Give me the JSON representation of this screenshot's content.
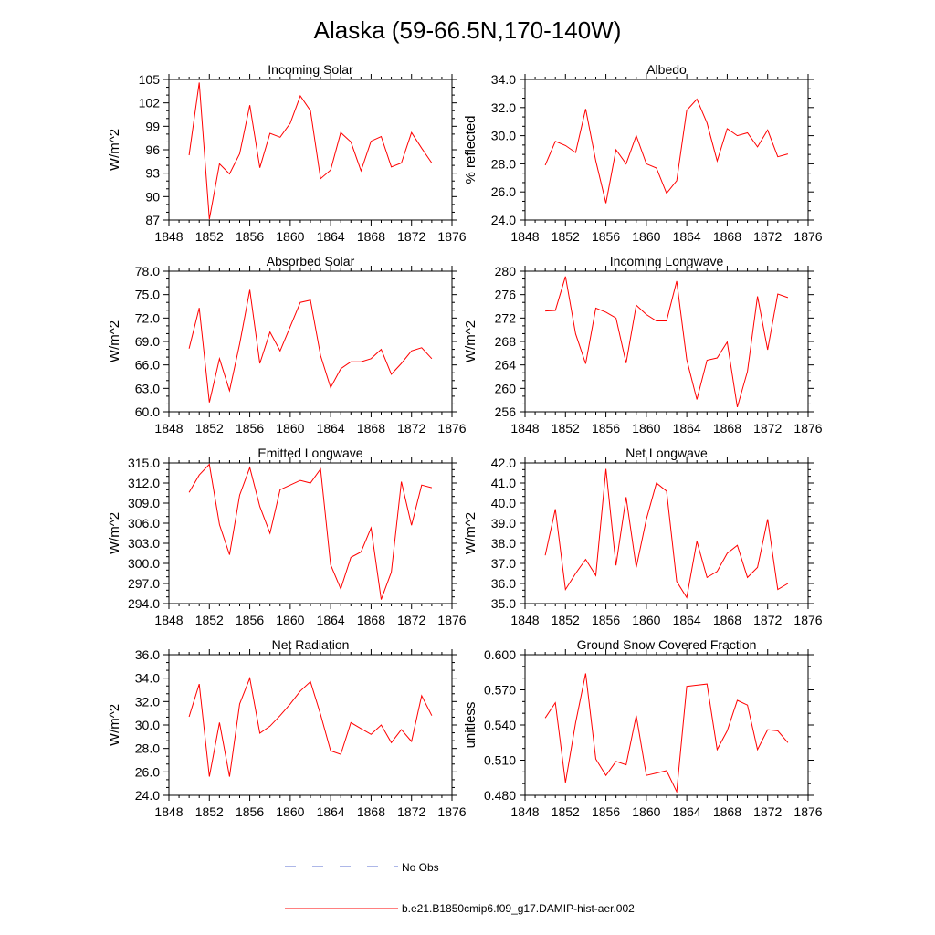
{
  "title": "Alaska (59-66.5N,170-140W)",
  "colors": {
    "model_line": "#ff0000",
    "obs_line": "#5b6fd1",
    "axis": "#000000"
  },
  "legend": {
    "obs_label": "No Obs",
    "model_label": "b.e21.B1850cmip6.f09_g17.DAMIP-hist-aer.002"
  },
  "chart_data": [
    {
      "type": "line",
      "title": "Incoming Solar",
      "ylabel": "W/m^2",
      "xlim": [
        1848,
        1876
      ],
      "ylim": [
        87,
        105
      ],
      "xticks": [
        1848,
        1852,
        1856,
        1860,
        1864,
        1868,
        1872,
        1876
      ],
      "yticks": [
        87,
        90,
        93,
        96,
        99,
        102,
        105
      ],
      "ytick_labels": [
        "87",
        "90",
        "93",
        "96",
        "99",
        "102",
        "105"
      ],
      "x": [
        1850,
        1851,
        1852,
        1853,
        1854,
        1855,
        1856,
        1857,
        1858,
        1859,
        1860,
        1861,
        1862,
        1863,
        1864,
        1865,
        1866,
        1867,
        1868,
        1869,
        1870,
        1871,
        1872,
        1873,
        1874
      ],
      "values": [
        95.3,
        104.6,
        87.1,
        94.2,
        92.9,
        95.5,
        101.7,
        93.7,
        98.1,
        97.6,
        99.4,
        102.9,
        101.0,
        92.3,
        93.4,
        98.2,
        97.0,
        93.3,
        97.1,
        97.7,
        93.8,
        94.3,
        98.2,
        96.2,
        94.3
      ]
    },
    {
      "type": "line",
      "title": "Albedo",
      "ylabel": "% reflected",
      "xlim": [
        1848,
        1876
      ],
      "ylim": [
        24,
        34
      ],
      "xticks": [
        1848,
        1852,
        1856,
        1860,
        1864,
        1868,
        1872,
        1876
      ],
      "yticks": [
        24,
        26,
        28,
        30,
        32,
        34
      ],
      "ytick_labels": [
        "24.0",
        "26.0",
        "28.0",
        "30.0",
        "32.0",
        "34.0"
      ],
      "x": [
        1850,
        1851,
        1852,
        1853,
        1854,
        1855,
        1856,
        1857,
        1858,
        1859,
        1860,
        1861,
        1862,
        1863,
        1864,
        1865,
        1866,
        1867,
        1868,
        1869,
        1870,
        1871,
        1872,
        1873,
        1874
      ],
      "values": [
        27.9,
        29.6,
        29.3,
        28.8,
        31.9,
        28.2,
        25.2,
        29.0,
        28.0,
        30.0,
        28.0,
        27.7,
        25.9,
        26.8,
        31.8,
        32.6,
        30.9,
        28.2,
        30.5,
        30.0,
        30.2,
        29.2,
        30.4,
        28.5,
        28.7
      ]
    },
    {
      "type": "line",
      "title": "Absorbed Solar",
      "ylabel": "W/m^2",
      "xlim": [
        1848,
        1876
      ],
      "ylim": [
        60,
        78
      ],
      "xticks": [
        1848,
        1852,
        1856,
        1860,
        1864,
        1868,
        1872,
        1876
      ],
      "yticks": [
        60,
        63,
        66,
        69,
        72,
        75,
        78
      ],
      "ytick_labels": [
        "60.0",
        "63.0",
        "66.0",
        "69.0",
        "72.0",
        "75.0",
        "78.0"
      ],
      "x": [
        1850,
        1851,
        1852,
        1853,
        1854,
        1855,
        1856,
        1857,
        1858,
        1859,
        1860,
        1861,
        1862,
        1863,
        1864,
        1865,
        1866,
        1867,
        1868,
        1869,
        1870,
        1871,
        1872,
        1873,
        1874
      ],
      "values": [
        68.1,
        73.3,
        61.2,
        66.8,
        62.7,
        68.7,
        75.6,
        66.2,
        70.2,
        67.8,
        70.9,
        74.0,
        74.3,
        67.2,
        63.1,
        65.5,
        66.4,
        66.4,
        66.8,
        68.0,
        64.8,
        66.2,
        67.8,
        68.2,
        66.8
      ]
    },
    {
      "type": "line",
      "title": "Incoming Longwave",
      "ylabel": "W/m^2",
      "xlim": [
        1848,
        1876
      ],
      "ylim": [
        256,
        280
      ],
      "xticks": [
        1848,
        1852,
        1856,
        1860,
        1864,
        1868,
        1872,
        1876
      ],
      "yticks": [
        256,
        260,
        264,
        268,
        272,
        276,
        280
      ],
      "ytick_labels": [
        "256",
        "260",
        "264",
        "268",
        "272",
        "276",
        "280"
      ],
      "x": [
        1850,
        1851,
        1852,
        1853,
        1854,
        1855,
        1856,
        1857,
        1858,
        1859,
        1860,
        1861,
        1862,
        1863,
        1864,
        1865,
        1866,
        1867,
        1868,
        1869,
        1870,
        1871,
        1872,
        1873,
        1874
      ],
      "values": [
        273.2,
        273.3,
        279.1,
        269.3,
        264.2,
        273.7,
        273.0,
        272.0,
        264.3,
        274.2,
        272.6,
        271.5,
        271.5,
        278.3,
        264.9,
        258.1,
        264.8,
        265.2,
        267.9,
        256.8,
        262.9,
        275.7,
        266.6,
        276.1,
        275.5
      ]
    },
    {
      "type": "line",
      "title": "Emitted Longwave",
      "ylabel": "W/m^2",
      "xlim": [
        1848,
        1876
      ],
      "ylim": [
        294,
        315
      ],
      "xticks": [
        1848,
        1852,
        1856,
        1860,
        1864,
        1868,
        1872,
        1876
      ],
      "yticks": [
        294,
        297,
        300,
        303,
        306,
        309,
        312,
        315
      ],
      "ytick_labels": [
        "294.0",
        "297.0",
        "300.0",
        "303.0",
        "306.0",
        "309.0",
        "312.0",
        "315.0"
      ],
      "x": [
        1850,
        1851,
        1852,
        1853,
        1854,
        1855,
        1856,
        1857,
        1858,
        1859,
        1860,
        1861,
        1862,
        1863,
        1864,
        1865,
        1866,
        1867,
        1868,
        1869,
        1870,
        1871,
        1872,
        1873,
        1874
      ],
      "values": [
        310.6,
        313.2,
        314.8,
        305.8,
        301.3,
        310.2,
        314.3,
        308.5,
        304.5,
        311.0,
        311.7,
        312.4,
        312.0,
        314.1,
        299.8,
        296.2,
        300.9,
        301.7,
        305.3,
        294.6,
        298.7,
        312.2,
        305.7,
        311.7,
        311.3
      ]
    },
    {
      "type": "line",
      "title": "Net Longwave",
      "ylabel": "W/m^2",
      "xlim": [
        1848,
        1876
      ],
      "ylim": [
        35,
        42
      ],
      "xticks": [
        1848,
        1852,
        1856,
        1860,
        1864,
        1868,
        1872,
        1876
      ],
      "yticks": [
        35,
        36,
        37,
        38,
        39,
        40,
        41,
        42
      ],
      "ytick_labels": [
        "35.0",
        "36.0",
        "37.0",
        "38.0",
        "39.0",
        "40.0",
        "41.0",
        "42.0"
      ],
      "x": [
        1850,
        1851,
        1852,
        1853,
        1854,
        1855,
        1856,
        1857,
        1858,
        1859,
        1860,
        1861,
        1862,
        1863,
        1864,
        1865,
        1866,
        1867,
        1868,
        1869,
        1870,
        1871,
        1872,
        1873,
        1874
      ],
      "values": [
        37.4,
        39.7,
        35.7,
        36.5,
        37.2,
        36.4,
        41.7,
        36.9,
        40.3,
        36.8,
        39.2,
        41.0,
        40.6,
        36.1,
        35.3,
        38.1,
        36.3,
        36.6,
        37.5,
        37.9,
        36.3,
        36.8,
        39.2,
        35.7,
        36.0
      ]
    },
    {
      "type": "line",
      "title": "Net Radiation",
      "ylabel": "W/m^2",
      "xlim": [
        1848,
        1876
      ],
      "ylim": [
        24,
        36
      ],
      "xticks": [
        1848,
        1852,
        1856,
        1860,
        1864,
        1868,
        1872,
        1876
      ],
      "yticks": [
        24,
        26,
        28,
        30,
        32,
        34,
        36
      ],
      "ytick_labels": [
        "24.0",
        "26.0",
        "28.0",
        "30.0",
        "32.0",
        "34.0",
        "36.0"
      ],
      "x": [
        1850,
        1851,
        1852,
        1853,
        1854,
        1855,
        1856,
        1857,
        1858,
        1859,
        1860,
        1861,
        1862,
        1863,
        1864,
        1865,
        1866,
        1867,
        1868,
        1869,
        1870,
        1871,
        1872,
        1873,
        1874
      ],
      "values": [
        30.7,
        33.5,
        25.6,
        30.2,
        25.6,
        31.8,
        34.0,
        29.3,
        29.9,
        30.8,
        31.8,
        32.9,
        33.7,
        30.9,
        27.8,
        27.5,
        30.2,
        29.7,
        29.2,
        30.0,
        28.5,
        29.6,
        28.6,
        32.5,
        30.8
      ]
    },
    {
      "type": "line",
      "title": "Ground Snow Covered Fraction",
      "ylabel": "unitless",
      "xlim": [
        1848,
        1876
      ],
      "ylim": [
        0.48,
        0.6
      ],
      "xticks": [
        1848,
        1852,
        1856,
        1860,
        1864,
        1868,
        1872,
        1876
      ],
      "yticks": [
        0.48,
        0.51,
        0.54,
        0.57,
        0.6
      ],
      "ytick_labels": [
        "0.480",
        "0.510",
        "0.540",
        "0.570",
        "0.600"
      ],
      "x": [
        1850,
        1851,
        1852,
        1853,
        1854,
        1855,
        1856,
        1857,
        1858,
        1859,
        1860,
        1861,
        1862,
        1863,
        1864,
        1865,
        1866,
        1867,
        1868,
        1869,
        1870,
        1871,
        1872,
        1873,
        1874
      ],
      "values": [
        0.546,
        0.559,
        0.491,
        0.542,
        0.584,
        0.511,
        0.497,
        0.509,
        0.506,
        0.548,
        0.497,
        0.499,
        0.501,
        0.483,
        0.573,
        0.574,
        0.575,
        0.519,
        0.535,
        0.561,
        0.557,
        0.519,
        0.536,
        0.535,
        0.525
      ]
    }
  ]
}
